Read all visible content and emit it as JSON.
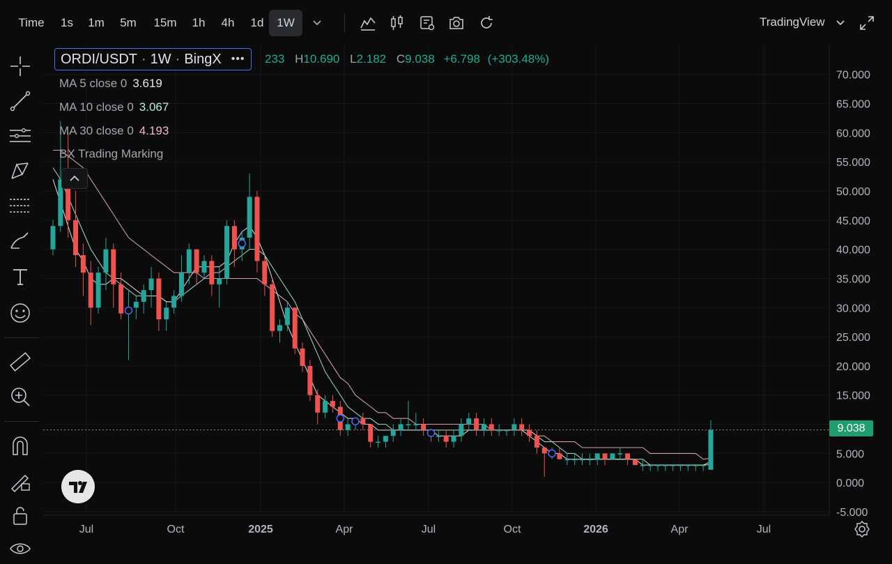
{
  "toolbar": {
    "timeframes": [
      "Time",
      "1s",
      "1m",
      "5m",
      "15m",
      "1h",
      "4h",
      "1d",
      "1W"
    ],
    "active": "1W",
    "brand": "TradingView"
  },
  "legend": {
    "symbol": "ORDI/USDT",
    "interval": "1W",
    "exchange": "BingX",
    "ohlc_open_partial": "233",
    "high_label": "H",
    "high": "10.690",
    "low_label": "L",
    "low": "2.182",
    "close_label": "C",
    "close": "9.038",
    "change": "+6.798",
    "change_pct": "(+303.48%)"
  },
  "indicators": [
    {
      "label": "MA 5 close 0",
      "value": "3.619",
      "color": "#ffffff"
    },
    {
      "label": "MA 10 close 0",
      "value": "3.067",
      "color": "#b2f0d6"
    },
    {
      "label": "MA 30 close 0",
      "value": "4.193",
      "color": "#f0b6c8"
    },
    {
      "label": "BX Trading Marking",
      "value": "",
      "color": ""
    }
  ],
  "colors": {
    "up": "#26a69a",
    "down": "#ef5350",
    "background": "#0b0b0c",
    "last_price": "#1f9d6f"
  },
  "chart_data": {
    "type": "candlestick",
    "ylim": [
      -5,
      72
    ],
    "yticks": [
      "70.000",
      "65.000",
      "60.000",
      "55.000",
      "50.000",
      "45.000",
      "40.000",
      "35.000",
      "30.000",
      "25.000",
      "20.000",
      "15.000",
      "10.000",
      "5.000",
      "0.000",
      "-5.000"
    ],
    "xticks": [
      "Jul",
      "Oct",
      "2025",
      "Apr",
      "Jul",
      "Oct",
      "2026",
      "Apr",
      "Jul"
    ],
    "last_price": 9.038,
    "last_price_label": "9.038",
    "candles": [
      [
        40,
        45,
        39,
        44
      ],
      [
        44,
        62,
        43,
        52
      ],
      [
        52,
        60,
        42,
        45
      ],
      [
        45,
        50,
        37,
        39
      ],
      [
        39,
        41,
        32,
        36
      ],
      [
        36,
        38,
        27,
        30
      ],
      [
        30,
        37,
        29,
        36
      ],
      [
        36,
        42,
        33,
        40
      ],
      [
        40,
        41,
        30,
        34
      ],
      [
        34,
        36,
        28,
        29
      ],
      [
        29,
        33,
        21,
        30
      ],
      [
        30,
        32,
        28,
        31
      ],
      [
        31,
        34,
        29,
        33
      ],
      [
        33,
        37,
        30,
        35
      ],
      [
        35,
        36,
        26,
        28
      ],
      [
        28,
        31,
        26,
        30
      ],
      [
        30,
        33,
        29,
        32
      ],
      [
        32,
        39,
        31,
        36
      ],
      [
        36,
        41,
        34,
        40
      ],
      [
        40,
        40,
        34,
        36
      ],
      [
        36,
        39,
        35,
        38
      ],
      [
        38,
        39,
        32,
        34
      ],
      [
        34,
        37,
        30,
        35
      ],
      [
        35,
        45,
        34,
        44
      ],
      [
        44,
        45,
        37,
        40
      ],
      [
        40,
        43,
        38,
        42
      ],
      [
        42,
        53,
        40,
        49
      ],
      [
        49,
        50,
        36,
        38
      ],
      [
        38,
        39,
        32,
        34
      ],
      [
        34,
        35,
        25,
        26
      ],
      [
        26,
        28,
        24,
        27
      ],
      [
        27,
        31,
        26,
        30
      ],
      [
        30,
        30,
        22,
        23
      ],
      [
        23,
        24,
        19,
        20
      ],
      [
        20,
        21,
        14,
        15
      ],
      [
        15,
        16,
        10,
        12
      ],
      [
        12,
        15,
        11,
        14
      ],
      [
        14,
        15,
        12,
        13
      ],
      [
        13,
        14,
        8,
        9
      ],
      [
        9,
        11,
        8,
        10
      ],
      [
        10,
        11,
        9,
        11
      ],
      [
        11,
        12,
        9,
        10
      ],
      [
        10,
        10,
        6,
        7
      ],
      [
        7,
        8,
        6,
        7
      ],
      [
        7,
        8,
        6,
        8
      ],
      [
        8,
        10,
        7,
        9
      ],
      [
        9,
        11,
        8,
        10
      ],
      [
        10,
        14,
        9,
        10
      ],
      [
        10,
        12,
        9,
        10
      ],
      [
        10,
        11,
        8,
        9
      ],
      [
        9,
        9,
        7,
        8
      ],
      [
        8,
        9,
        7,
        8
      ],
      [
        8,
        9,
        6,
        7
      ],
      [
        7,
        9,
        6,
        8
      ],
      [
        8,
        11,
        7,
        10
      ],
      [
        10,
        12,
        9,
        11
      ],
      [
        11,
        12,
        8,
        9
      ],
      [
        9,
        11,
        8,
        10
      ],
      [
        10,
        11,
        8,
        9
      ],
      [
        9,
        10,
        8,
        9
      ],
      [
        9,
        9,
        8,
        9
      ],
      [
        9,
        11,
        8,
        10
      ],
      [
        10,
        11,
        8,
        9
      ],
      [
        9,
        10,
        7,
        8
      ],
      [
        8,
        9,
        5,
        6
      ],
      [
        6,
        6,
        1,
        5
      ],
      [
        5,
        6,
        4,
        5
      ],
      [
        5,
        6,
        4,
        4
      ],
      [
        4,
        5,
        3,
        4
      ],
      [
        4,
        5,
        3,
        4
      ],
      [
        4,
        5,
        3,
        4
      ],
      [
        4,
        5,
        3,
        4
      ],
      [
        4,
        5,
        3,
        5
      ],
      [
        5,
        5,
        3,
        4
      ],
      [
        4,
        5,
        4,
        5
      ],
      [
        5,
        6,
        4,
        5
      ],
      [
        5,
        5,
        3,
        4
      ],
      [
        4,
        4,
        3,
        3
      ],
      [
        3,
        4,
        2,
        3
      ],
      [
        3,
        3,
        2,
        3
      ],
      [
        3,
        3,
        2,
        3
      ],
      [
        3,
        3,
        2,
        3
      ],
      [
        3,
        3,
        2,
        3
      ],
      [
        3,
        3,
        2,
        3
      ],
      [
        3,
        3,
        2,
        3
      ],
      [
        3,
        3,
        2,
        3
      ],
      [
        3,
        3,
        2,
        3
      ],
      [
        2.2,
        10.7,
        2.2,
        9.04
      ]
    ],
    "markers_at_candle": [
      10,
      25,
      38,
      40,
      50,
      66
    ],
    "ma": [
      {
        "label": "MA 5",
        "values": [
          52,
          48,
          44,
          40,
          38,
          35,
          34,
          34,
          35,
          35,
          34,
          33,
          32,
          32,
          32,
          31,
          31,
          33,
          35,
          37,
          37,
          37,
          37,
          38,
          41,
          43,
          44,
          42,
          39,
          35,
          31,
          27,
          24,
          21,
          18,
          15,
          14,
          13,
          12,
          11,
          11,
          10,
          10,
          9,
          9,
          9,
          9,
          9,
          9,
          9,
          9,
          8,
          8,
          8,
          8,
          9,
          9,
          9,
          9,
          9,
          9,
          9,
          9,
          8,
          7,
          6,
          5,
          5,
          4,
          4,
          4,
          4,
          4,
          4,
          4,
          4,
          4,
          4,
          3,
          3,
          3,
          3,
          3,
          3,
          3,
          3,
          3,
          3.6
        ]
      },
      {
        "label": "MA 10",
        "values": [
          54,
          52,
          49,
          46,
          43,
          40,
          38,
          36,
          35,
          34,
          33,
          32,
          32,
          32,
          32,
          31,
          31,
          32,
          33,
          34,
          35,
          36,
          36,
          37,
          38,
          39,
          40,
          40,
          39,
          37,
          35,
          33,
          31,
          28,
          25,
          22,
          19,
          17,
          15,
          13,
          12,
          11,
          11,
          10,
          10,
          9,
          9,
          9,
          9,
          9,
          9,
          9,
          9,
          9,
          9,
          9,
          9,
          9,
          9,
          9,
          9,
          9,
          9,
          9,
          8,
          7,
          7,
          6,
          5,
          5,
          4,
          4,
          4,
          4,
          4,
          4,
          4,
          4,
          4,
          3,
          3,
          3,
          3,
          3,
          3,
          3,
          3,
          3.1
        ]
      },
      {
        "label": "MA 30",
        "values": [
          57,
          57,
          56,
          55,
          54,
          52,
          50,
          48,
          46,
          44,
          42,
          41,
          40,
          39,
          38,
          37,
          36,
          36,
          36,
          36,
          35,
          35,
          35,
          35,
          35,
          35,
          35,
          35,
          34,
          33,
          32,
          31,
          29,
          28,
          26,
          24,
          22,
          20,
          18,
          17,
          15,
          14,
          13,
          12,
          12,
          11,
          11,
          11,
          10,
          10,
          10,
          10,
          10,
          10,
          10,
          10,
          10,
          10,
          9,
          9,
          9,
          9,
          9,
          9,
          8,
          8,
          7,
          7,
          7,
          7,
          6,
          6,
          6,
          6,
          6,
          6,
          6,
          6,
          6,
          5,
          5,
          5,
          5,
          5,
          5,
          5,
          4,
          4.2
        ]
      }
    ]
  }
}
